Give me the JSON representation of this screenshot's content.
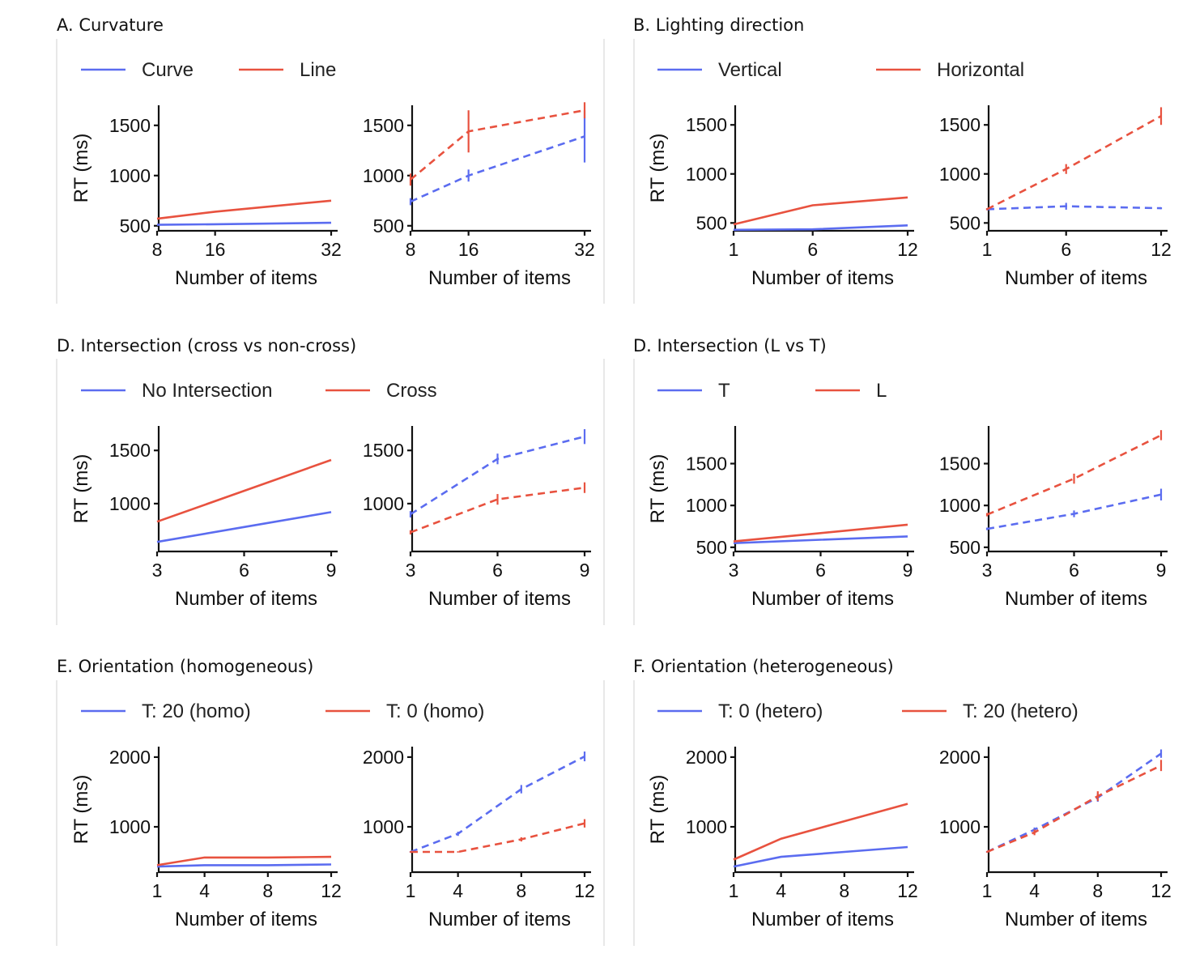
{
  "colors": {
    "series_1": "#5b6cf0",
    "series_2": "#e8523f"
  },
  "axis_labels": {
    "x": "Number of items",
    "y": "RT (ms)"
  },
  "chart_data": [
    {
      "id": "A",
      "title": "A.  Curvature",
      "type": "line",
      "legend": [
        "Curve",
        "Line"
      ],
      "x": [
        8,
        16,
        32
      ],
      "xticks": [
        8,
        16,
        32
      ],
      "ylim": [
        450,
        1700
      ],
      "yticks": [
        500,
        1000,
        1500
      ],
      "left": {
        "series": [
          {
            "name": "Curve",
            "values": [
              510,
              515,
              530
            ]
          },
          {
            "name": "Line",
            "values": [
              570,
              640,
              750
            ]
          }
        ]
      },
      "right": {
        "series": [
          {
            "name": "Curve",
            "values": [
              740,
              1000,
              1390
            ],
            "err": [
              35,
              60,
              260
            ]
          },
          {
            "name": "Line",
            "values": [
              960,
              1440,
              1650
            ],
            "err": [
              60,
              210,
              80
            ]
          }
        ]
      }
    },
    {
      "id": "B",
      "title": "B.  Lighting direction",
      "type": "line",
      "legend": [
        "Vertical",
        "Horizontal"
      ],
      "x": [
        1,
        6,
        12
      ],
      "xticks": [
        1,
        6,
        12
      ],
      "ylim": [
        420,
        1700
      ],
      "yticks": [
        500,
        1000,
        1500
      ],
      "left": {
        "series": [
          {
            "name": "Vertical",
            "values": [
              430,
              435,
              475
            ]
          },
          {
            "name": "Horizontal",
            "values": [
              485,
              680,
              760
            ]
          }
        ]
      },
      "right": {
        "series": [
          {
            "name": "Vertical",
            "values": [
              640,
              670,
              650
            ],
            "err": [
              10,
              35,
              10
            ]
          },
          {
            "name": "Horizontal",
            "values": [
              640,
              1050,
              1590
            ],
            "err": [
              10,
              50,
              90
            ]
          }
        ]
      }
    },
    {
      "id": "C",
      "title": "D.  Intersection (cross vs non-cross)",
      "type": "line",
      "legend": [
        "No Intersection",
        "Cross"
      ],
      "x": [
        3,
        6,
        9
      ],
      "xticks": [
        3,
        6,
        9
      ],
      "ylim": [
        550,
        1730
      ],
      "yticks": [
        1000,
        1500
      ],
      "left": {
        "series": [
          {
            "name": "No Intersection",
            "values": [
              640,
              780,
              920
            ]
          },
          {
            "name": "Cross",
            "values": [
              830,
              1120,
              1410
            ]
          }
        ]
      },
      "right": {
        "series": [
          {
            "name": "No Intersection",
            "values": [
              900,
              1420,
              1630
            ],
            "err": [
              30,
              50,
              70
            ]
          },
          {
            "name": "Cross",
            "values": [
              730,
              1040,
              1150
            ],
            "err": [
              20,
              50,
              50
            ]
          }
        ]
      }
    },
    {
      "id": "D",
      "title": "D.  Intersection (L vs T)",
      "type": "line",
      "legend": [
        "T",
        "L"
      ],
      "x": [
        3,
        6,
        9
      ],
      "xticks": [
        3,
        6,
        9
      ],
      "ylim": [
        450,
        1950
      ],
      "yticks": [
        500,
        1000,
        1500
      ],
      "left": {
        "series": [
          {
            "name": "T",
            "values": [
              550,
              590,
              630
            ]
          },
          {
            "name": "L",
            "values": [
              570,
              670,
              770
            ]
          }
        ]
      },
      "right": {
        "series": [
          {
            "name": "T",
            "values": [
              720,
              900,
              1130
            ],
            "err": [
              15,
              40,
              70
            ]
          },
          {
            "name": "L",
            "values": [
              890,
              1320,
              1840
            ],
            "err": [
              20,
              60,
              60
            ]
          }
        ]
      }
    },
    {
      "id": "E",
      "title": "E.  Orientation (homogeneous)",
      "type": "line",
      "legend": [
        "T: 20 (homo)",
        "T: 0 (homo)"
      ],
      "x": [
        1,
        4,
        8,
        12
      ],
      "xticks": [
        1,
        4,
        8,
        12
      ],
      "ylim": [
        350,
        2150
      ],
      "yticks": [
        1000,
        2000
      ],
      "left": {
        "series": [
          {
            "name": "T: 20 (homo)",
            "values": [
              430,
              450,
              450,
              460
            ]
          },
          {
            "name": "T: 0 (homo)",
            "values": [
              450,
              560,
              560,
              570
            ]
          }
        ]
      },
      "right": {
        "series": [
          {
            "name": "T: 20 (homo)",
            "values": [
              640,
              900,
              1540,
              2010
            ],
            "err": [
              10,
              30,
              60,
              70
            ]
          },
          {
            "name": "T: 0 (homo)",
            "values": [
              640,
              640,
              820,
              1050
            ],
            "err": [
              10,
              10,
              30,
              60
            ]
          }
        ]
      }
    },
    {
      "id": "F",
      "title": "F.  Orientation (heterogeneous)",
      "type": "line",
      "legend": [
        "T: 0 (hetero)",
        "T: 20 (hetero)"
      ],
      "x": [
        1,
        4,
        8,
        12
      ],
      "xticks": [
        1,
        4,
        8,
        12
      ],
      "ylim": [
        350,
        2150
      ],
      "yticks": [
        1000,
        2000
      ],
      "left": {
        "series": [
          {
            "name": "T: 0 (hetero)",
            "values": [
              430,
              570,
              640,
              710
            ]
          },
          {
            "name": "T: 20 (hetero)",
            "values": [
              530,
              830,
              1080,
              1330
            ]
          }
        ]
      },
      "right": {
        "series": [
          {
            "name": "T: 0 (hetero)",
            "values": [
              640,
              960,
              1420,
              2050
            ],
            "err": [
              10,
              30,
              60,
              60
            ]
          },
          {
            "name": "T: 20 (hetero)",
            "values": [
              640,
              920,
              1440,
              1880
            ],
            "err": [
              10,
              40,
              70,
              80
            ]
          }
        ]
      }
    }
  ]
}
